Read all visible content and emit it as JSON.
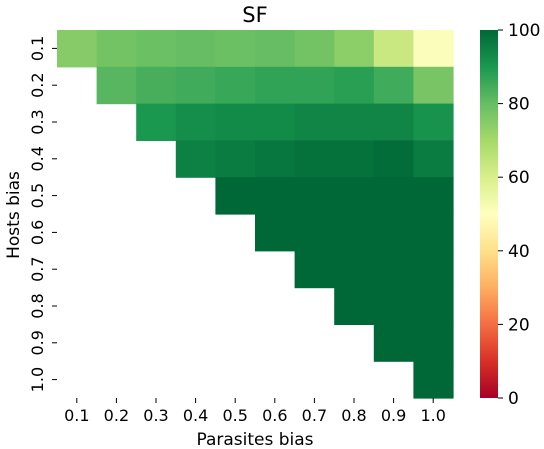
{
  "chart_data": {
    "type": "heatmap",
    "title": "SF",
    "xlabel": "Parasites bias",
    "ylabel": "Hosts bias",
    "x_categories": [
      "0.1",
      "0.2",
      "0.3",
      "0.4",
      "0.5",
      "0.6",
      "0.7",
      "0.8",
      "0.9",
      "1.0"
    ],
    "y_categories": [
      "0.1",
      "0.2",
      "0.3",
      "0.4",
      "0.5",
      "0.6",
      "0.7",
      "0.8",
      "0.9",
      "1.0"
    ],
    "values": [
      [
        75,
        78,
        79,
        80,
        79,
        80,
        78,
        74,
        63,
        51
      ],
      [
        null,
        82,
        84,
        85,
        86,
        87,
        87,
        88,
        85,
        77
      ],
      [
        null,
        null,
        90,
        92,
        93,
        93,
        94,
        94,
        94,
        91
      ],
      [
        null,
        null,
        null,
        95,
        96,
        97,
        98,
        98,
        99,
        96
      ],
      [
        null,
        null,
        null,
        null,
        100,
        100,
        100,
        100,
        100,
        100
      ],
      [
        null,
        null,
        null,
        null,
        null,
        100,
        100,
        100,
        100,
        100
      ],
      [
        null,
        null,
        null,
        null,
        null,
        null,
        100,
        100,
        100,
        100
      ],
      [
        null,
        null,
        null,
        null,
        null,
        null,
        null,
        100,
        100,
        100
      ],
      [
        null,
        null,
        null,
        null,
        null,
        null,
        null,
        null,
        100,
        100
      ],
      [
        null,
        null,
        null,
        null,
        null,
        null,
        null,
        null,
        null,
        100
      ]
    ],
    "colorbar": {
      "colormap": "RdYlGn",
      "range": [
        0,
        100
      ],
      "ticks": [
        "0",
        "20",
        "40",
        "60",
        "80",
        "100"
      ]
    }
  }
}
